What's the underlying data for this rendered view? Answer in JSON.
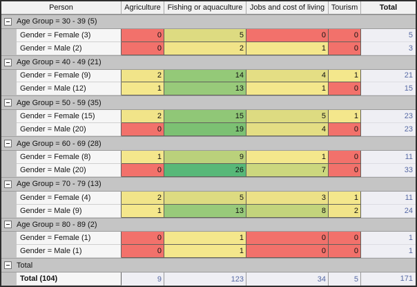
{
  "table": {
    "columns": [
      "Person",
      "Agriculture",
      "Fishing or aquaculture",
      "Jobs and cost of living",
      "Tourism",
      "Total"
    ],
    "heat_colors": {
      "min": "#F2716B",
      "mid": "#F4E78C",
      "max": "#57B878"
    },
    "total_text_color": "#5568A4",
    "group_band_color": "#C5C5C5"
  },
  "rows": [
    {
      "type": "group",
      "label": "Age Group = 30 - 39 (5)"
    },
    {
      "type": "data",
      "label": "Gender = Female (3)",
      "cells": [
        {
          "v": 0,
          "bg": "#F2716B"
        },
        {
          "v": 5,
          "bg": "#DDDB81"
        },
        {
          "v": 0,
          "bg": "#F2716B"
        },
        {
          "v": 0,
          "bg": "#F2716B"
        }
      ],
      "total": 5
    },
    {
      "type": "data",
      "label": "Gender = Male (2)",
      "cells": [
        {
          "v": 0,
          "bg": "#F2716B"
        },
        {
          "v": 2,
          "bg": "#F1E489"
        },
        {
          "v": 1,
          "bg": "#F4E78C"
        },
        {
          "v": 0,
          "bg": "#F2716B"
        }
      ],
      "total": 3
    },
    {
      "type": "group",
      "label": "Age Group = 40 - 49 (21)"
    },
    {
      "type": "data",
      "label": "Gender = Female (9)",
      "cells": [
        {
          "v": 2,
          "bg": "#F1E489"
        },
        {
          "v": 14,
          "bg": "#94C978"
        },
        {
          "v": 4,
          "bg": "#E4DE84"
        },
        {
          "v": 1,
          "bg": "#F4E78C"
        }
      ],
      "total": 21
    },
    {
      "type": "data",
      "label": "Gender = Male (12)",
      "cells": [
        {
          "v": 1,
          "bg": "#F4E78C"
        },
        {
          "v": 13,
          "bg": "#98CA7A"
        },
        {
          "v": 1,
          "bg": "#F4E78C"
        },
        {
          "v": 0,
          "bg": "#F2716B"
        }
      ],
      "total": 15
    },
    {
      "type": "group",
      "label": "Age Group = 50 - 59 (35)"
    },
    {
      "type": "data",
      "label": "Gender = Female (15)",
      "cells": [
        {
          "v": 2,
          "bg": "#F1E489"
        },
        {
          "v": 15,
          "bg": "#90C777"
        },
        {
          "v": 5,
          "bg": "#DDDB81"
        },
        {
          "v": 1,
          "bg": "#F4E78C"
        }
      ],
      "total": 23
    },
    {
      "type": "data",
      "label": "Gender = Male (20)",
      "cells": [
        {
          "v": 0,
          "bg": "#F2716B"
        },
        {
          "v": 19,
          "bg": "#7CC173"
        },
        {
          "v": 4,
          "bg": "#E4DE84"
        },
        {
          "v": 0,
          "bg": "#F2716B"
        }
      ],
      "total": 23
    },
    {
      "type": "group",
      "label": "Age Group = 60 - 69 (28)"
    },
    {
      "type": "data",
      "label": "Gender = Female (8)",
      "cells": [
        {
          "v": 1,
          "bg": "#F4E78C"
        },
        {
          "v": 9,
          "bg": "#BAD17B"
        },
        {
          "v": 1,
          "bg": "#F4E78C"
        },
        {
          "v": 0,
          "bg": "#F2716B"
        }
      ],
      "total": 11
    },
    {
      "type": "data",
      "label": "Gender = Male (20)",
      "cells": [
        {
          "v": 0,
          "bg": "#F2716B"
        },
        {
          "v": 26,
          "bg": "#57B878"
        },
        {
          "v": 7,
          "bg": "#CCD77E"
        },
        {
          "v": 0,
          "bg": "#F2716B"
        }
      ],
      "total": 33
    },
    {
      "type": "group",
      "label": "Age Group = 70 - 79 (13)"
    },
    {
      "type": "data",
      "label": "Gender = Female (4)",
      "cells": [
        {
          "v": 2,
          "bg": "#F1E489"
        },
        {
          "v": 5,
          "bg": "#DDDB81"
        },
        {
          "v": 3,
          "bg": "#ECE187"
        },
        {
          "v": 1,
          "bg": "#F4E78C"
        }
      ],
      "total": 11
    },
    {
      "type": "data",
      "label": "Gender = Male (9)",
      "cells": [
        {
          "v": 1,
          "bg": "#F4E78C"
        },
        {
          "v": 13,
          "bg": "#98CA7A"
        },
        {
          "v": 8,
          "bg": "#C3D47C"
        },
        {
          "v": 2,
          "bg": "#F1E489"
        }
      ],
      "total": 24
    },
    {
      "type": "group",
      "label": "Age Group = 80 - 89 (2)"
    },
    {
      "type": "data",
      "label": "Gender = Female (1)",
      "cells": [
        {
          "v": 0,
          "bg": "#F2716B"
        },
        {
          "v": 1,
          "bg": "#F4E78C"
        },
        {
          "v": 0,
          "bg": "#F2716B"
        },
        {
          "v": 0,
          "bg": "#F2716B"
        }
      ],
      "total": 1
    },
    {
      "type": "data",
      "label": "Gender = Male (1)",
      "cells": [
        {
          "v": 0,
          "bg": "#F2716B"
        },
        {
          "v": 1,
          "bg": "#F4E78C"
        },
        {
          "v": 0,
          "bg": "#F2716B"
        },
        {
          "v": 0,
          "bg": "#F2716B"
        }
      ],
      "total": 1
    },
    {
      "type": "group",
      "label": "Total"
    },
    {
      "type": "grand-total",
      "label": "Total (104)",
      "cells": [
        {
          "v": 9
        },
        {
          "v": 123
        },
        {
          "v": 34
        },
        {
          "v": 5
        }
      ],
      "total": 171
    }
  ]
}
